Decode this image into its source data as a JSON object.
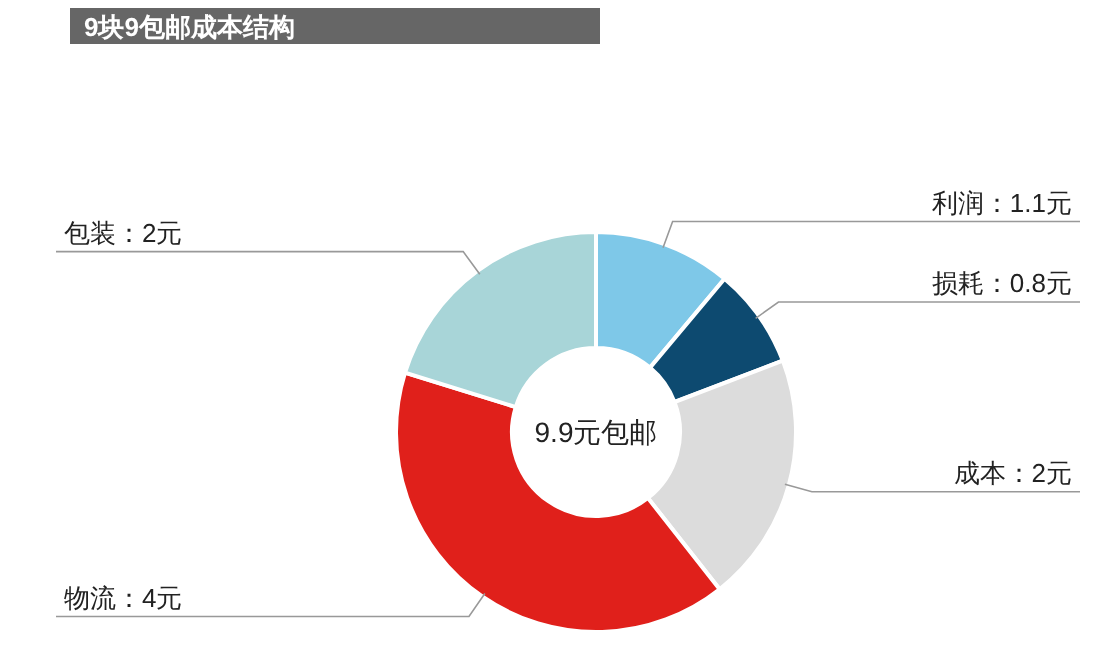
{
  "chart_data": {
    "type": "donut",
    "title": "9块9包邮成本结构",
    "categories": [
      "利润",
      "损耗",
      "成本",
      "物流",
      "包装"
    ],
    "values": [
      1.1,
      0.8,
      2,
      4,
      2
    ],
    "value_labels": [
      "：1.1元",
      "：0.8元",
      "：2元",
      "：4元",
      "：2元"
    ],
    "colors": [
      "#7ec8e8",
      "#0d4a70",
      "#dcdcdc",
      "#e0201b",
      "#a8d5d8"
    ],
    "annotations": [
      "9.9元包邮"
    ]
  }
}
